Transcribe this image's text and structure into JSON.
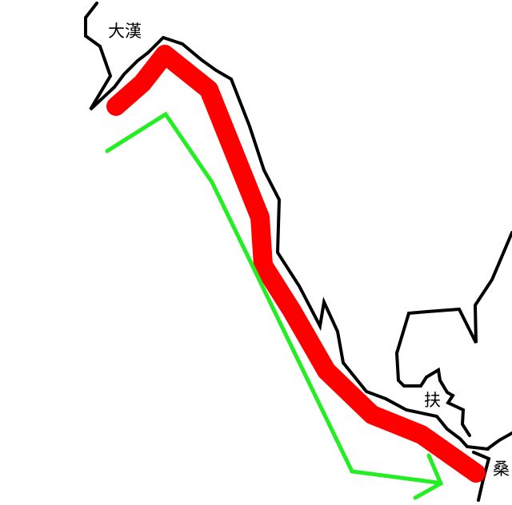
{
  "map": {
    "background_color": "#ffffff",
    "coastline_color": "#000000",
    "red_route_color": "#ff0000",
    "green_route_color": "#22ee22",
    "labels": {
      "dahan": "大漢",
      "fu": "扶",
      "sang": "桑"
    },
    "icons": {
      "green_route_end": "arrowhead-icon"
    }
  }
}
